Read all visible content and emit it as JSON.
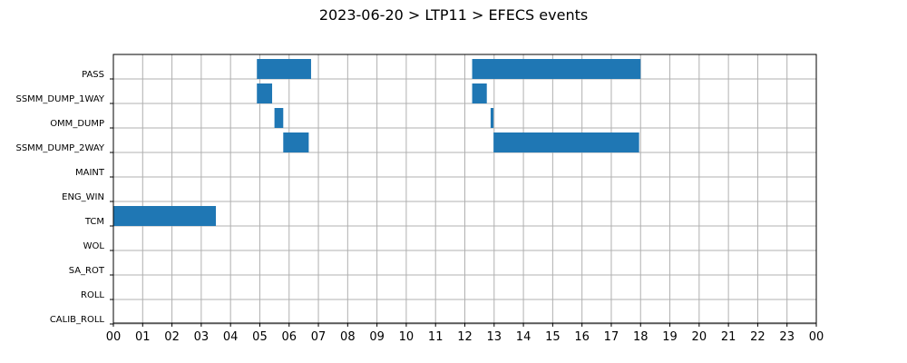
{
  "chart_data": {
    "type": "bar",
    "orientation": "horizontal-gantt",
    "title": "2023-06-20 > LTP11 > EFECS events",
    "xlabel": "",
    "ylabel": "",
    "grid": true,
    "bar_color": "#1f77b4",
    "categories": [
      "PASS",
      "SSMM_DUMP_1WAY",
      "OMM_DUMP",
      "SSMM_DUMP_2WAY",
      "MAINT",
      "ENG_WIN",
      "TCM",
      "WOL",
      "SA_ROT",
      "ROLL",
      "CALIB_ROLL"
    ],
    "x_ticks": [
      "00",
      "01",
      "02",
      "03",
      "04",
      "05",
      "06",
      "07",
      "08",
      "09",
      "10",
      "11",
      "12",
      "13",
      "14",
      "15",
      "16",
      "17",
      "18",
      "19",
      "20",
      "21",
      "22",
      "23",
      "00"
    ],
    "xlim_hours": [
      0,
      24
    ],
    "events": [
      {
        "category": "PASS",
        "start_hour": 4.9,
        "end_hour": 6.75
      },
      {
        "category": "PASS",
        "start_hour": 12.25,
        "end_hour": 18.0
      },
      {
        "category": "SSMM_DUMP_1WAY",
        "start_hour": 4.9,
        "end_hour": 5.42
      },
      {
        "category": "SSMM_DUMP_1WAY",
        "start_hour": 12.25,
        "end_hour": 12.75
      },
      {
        "category": "OMM_DUMP",
        "start_hour": 5.5,
        "end_hour": 5.8
      },
      {
        "category": "OMM_DUMP",
        "start_hour": 12.88,
        "end_hour": 12.98
      },
      {
        "category": "SSMM_DUMP_2WAY",
        "start_hour": 5.8,
        "end_hour": 6.67
      },
      {
        "category": "SSMM_DUMP_2WAY",
        "start_hour": 12.98,
        "end_hour": 17.95
      },
      {
        "category": "TCM",
        "start_hour": 0.0,
        "end_hour": 3.5
      }
    ]
  }
}
